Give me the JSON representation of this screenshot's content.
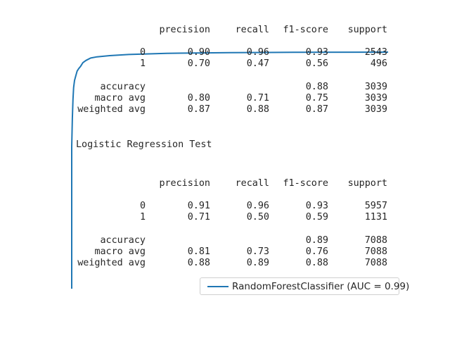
{
  "chart_data": {
    "type": "line",
    "title": "",
    "xlabel": "",
    "ylabel": "",
    "grid": false,
    "axes_visible": false,
    "xlim": [
      0,
      1
    ],
    "ylim": [
      0,
      1
    ],
    "legend": "bottom-right",
    "series": [
      {
        "name": "RandomForestClassifier (AUC = 0.99)",
        "color": "#1f77b4",
        "x": [
          0.0,
          0.0,
          0.002,
          0.004,
          0.006,
          0.009,
          0.013,
          0.017,
          0.022,
          0.028,
          0.035,
          0.045,
          0.06,
          0.08,
          0.12,
          0.18,
          0.3,
          0.5,
          0.7,
          1.0
        ],
        "y": [
          0.0,
          0.6,
          0.72,
          0.8,
          0.85,
          0.88,
          0.9,
          0.92,
          0.93,
          0.94,
          0.955,
          0.965,
          0.975,
          0.98,
          0.985,
          0.99,
          0.995,
          0.998,
          0.999,
          1.0
        ]
      }
    ]
  },
  "reports": [
    {
      "heading": "",
      "headers": [
        "precision",
        "recall",
        "f1-score",
        "support"
      ],
      "class_rows": [
        {
          "label": "0",
          "precision": "0.90",
          "recall": "0.96",
          "f1": "0.93",
          "support": "2543"
        },
        {
          "label": "1",
          "precision": "0.70",
          "recall": "0.47",
          "f1": "0.56",
          "support": "496"
        }
      ],
      "accuracy": {
        "label": "accuracy",
        "f1": "0.88",
        "support": "3039"
      },
      "avg_rows": [
        {
          "label": "macro avg",
          "precision": "0.80",
          "recall": "0.71",
          "f1": "0.75",
          "support": "3039"
        },
        {
          "label": "weighted avg",
          "precision": "0.87",
          "recall": "0.88",
          "f1": "0.87",
          "support": "3039"
        }
      ]
    },
    {
      "heading": "Logistic Regression Test",
      "headers": [
        "precision",
        "recall",
        "f1-score",
        "support"
      ],
      "class_rows": [
        {
          "label": "0",
          "precision": "0.91",
          "recall": "0.96",
          "f1": "0.93",
          "support": "5957"
        },
        {
          "label": "1",
          "precision": "0.71",
          "recall": "0.50",
          "f1": "0.59",
          "support": "1131"
        }
      ],
      "accuracy": {
        "label": "accuracy",
        "f1": "0.89",
        "support": "7088"
      },
      "avg_rows": [
        {
          "label": "macro avg",
          "precision": "0.81",
          "recall": "0.73",
          "f1": "0.76",
          "support": "7088"
        },
        {
          "label": "weighted avg",
          "precision": "0.88",
          "recall": "0.89",
          "f1": "0.88",
          "support": "7088"
        }
      ]
    }
  ]
}
